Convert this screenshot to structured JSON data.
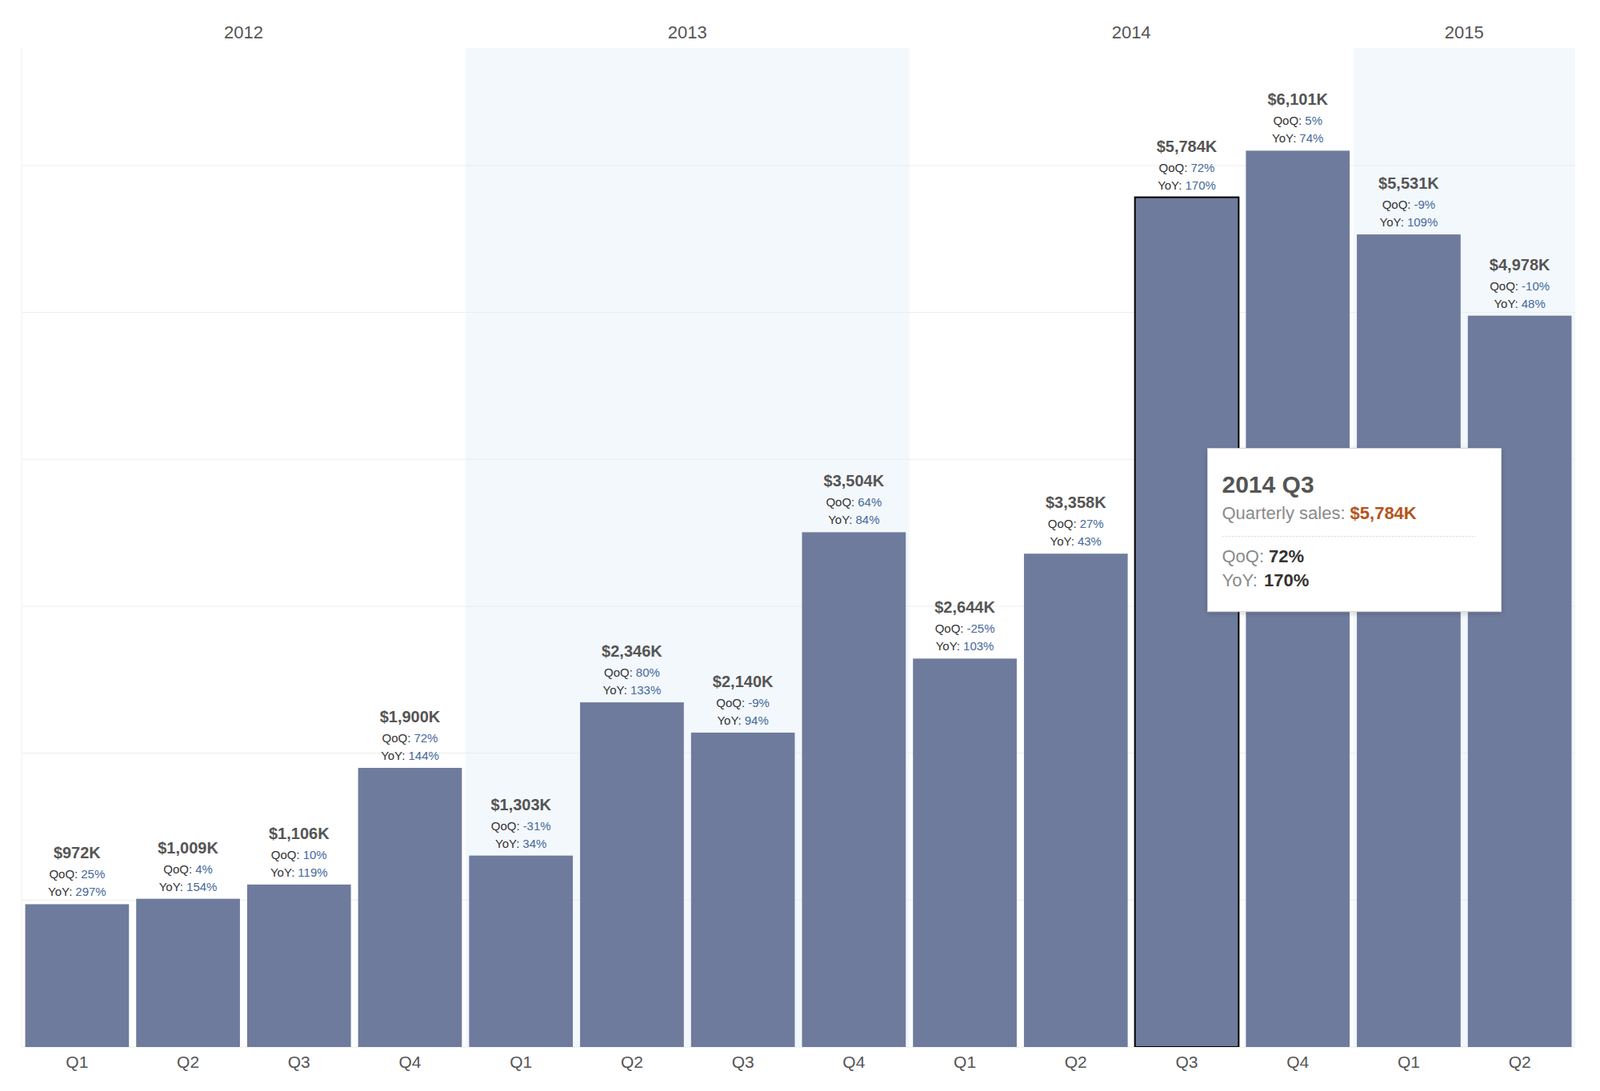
{
  "chart_data": {
    "type": "bar",
    "categories": [
      "Q1",
      "Q2",
      "Q3",
      "Q4",
      "Q1",
      "Q2",
      "Q3",
      "Q4",
      "Q1",
      "Q2",
      "Q3",
      "Q4",
      "Q1",
      "Q2"
    ],
    "values": [
      972,
      1009,
      1106,
      1900,
      1303,
      2346,
      2140,
      3504,
      2644,
      3358,
      5784,
      6101,
      5531,
      4978
    ],
    "value_labels": [
      "$972K",
      "$1,009K",
      "$1,106K",
      "$1,900K",
      "$1,303K",
      "$2,346K",
      "$2,140K",
      "$3,504K",
      "$2,644K",
      "$3,358K",
      "$5,784K",
      "$6,101K",
      "$5,531K",
      "$4,978K"
    ],
    "color": "#6e7b9c",
    "ylim": [
      0,
      6800
    ],
    "yticks": [
      0,
      1000,
      2000,
      3000,
      4000,
      5000,
      6000
    ],
    "grid": true,
    "tick_labels": "x",
    "data_labels": true,
    "years": [
      "2012",
      "2013",
      "2014",
      "2015"
    ],
    "qoq_label": "QoQ:",
    "qoq": [
      25,
      4,
      10,
      72,
      -31,
      80,
      -9,
      64,
      -25,
      27,
      72,
      5,
      -9,
      -10
    ],
    "qoq_labels": [
      "25%",
      "4%",
      "10%",
      "72%",
      "-31%",
      "80%",
      "-9%",
      "64%",
      "-25%",
      "27%",
      "72%",
      "5%",
      "-9%",
      "-10%"
    ],
    "yoy_label": "YoY:",
    "yoy": [
      297,
      154,
      119,
      144,
      34,
      133,
      94,
      84,
      103,
      43,
      170,
      74,
      109,
      48
    ],
    "yoy_labels": [
      "297%",
      "154%",
      "119%",
      "144%",
      "34%",
      "133%",
      "94%",
      "84%",
      "103%",
      "43%",
      "170%",
      "74%",
      "109%",
      "48%"
    ],
    "tooltip": {
      "title": "2014 Q3",
      "sales_label": "Quarterly sales:",
      "sales": "$5,784K",
      "qoq": "72%",
      "yoy": "170%"
    }
  }
}
